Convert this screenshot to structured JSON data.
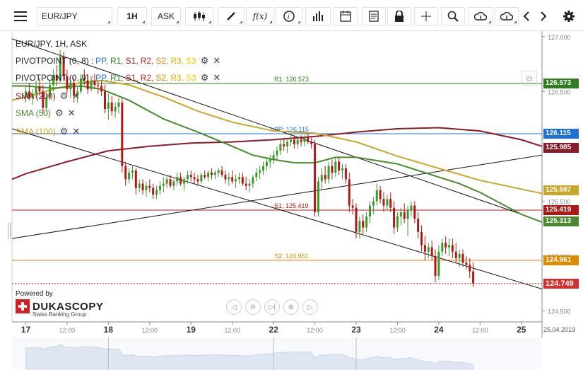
{
  "toolbar": {
    "symbol": "EUR/JPY",
    "timeframe": "1H",
    "price_side": "ASK"
  },
  "header": {
    "title": "EUR/JPY, 1H, ASK"
  },
  "legend": {
    "pivot1": {
      "name": "PIVOTPOINT (0, 8)",
      "sep": ":",
      "levels": [
        "PP",
        "R1",
        "S1",
        "R2",
        "S2",
        "R3",
        "S3"
      ]
    },
    "pivot2": {
      "name": "PIVOTPOINT (0, 9)",
      "sep": ":",
      "levels": [
        "PP",
        "R1",
        "S1",
        "R2",
        "S2",
        "R3",
        "S3"
      ]
    },
    "sma200": "SMA (200)",
    "sma50": "SMA (50)",
    "sma100": "SMA (100)"
  },
  "colors": {
    "PP": "#1e6fd9",
    "R1": "#2e7d1e",
    "S1": "#b01818",
    "R2": "#cc1f1f",
    "S2": "#e08a00",
    "R3": "#e0b000",
    "S3": "#f0d000",
    "sma200": "#8b1a2a",
    "sma50": "#4a8a2e",
    "sma100": "#c8a62a",
    "bull": "#3a9a2a",
    "bear": "#b01818"
  },
  "brand": {
    "powered": "Powered by",
    "name": "DUKASCOPY",
    "sub": "Swiss Banking Group"
  },
  "navigation": [
    "◁",
    "⊖",
    "▷|",
    "⊕",
    "▷"
  ],
  "chart_data": {
    "type": "candlestick",
    "title": "EUR/JPY, 1H, ASK",
    "ylim": [
      124.4,
      127.05
    ],
    "yticks": [
      "127.000",
      "126.500",
      "125.500",
      "125.000",
      "124.500"
    ],
    "xticks": [
      {
        "x": 0,
        "label": "17"
      },
      {
        "x": 12,
        "label": "12:00"
      },
      {
        "x": 24,
        "label": "18"
      },
      {
        "x": 36,
        "label": "12:00"
      },
      {
        "x": 48,
        "label": "19"
      },
      {
        "x": 60,
        "label": "12:00"
      },
      {
        "x": 72,
        "label": "22"
      },
      {
        "x": 84,
        "label": "12:00"
      },
      {
        "x": 96,
        "label": "23"
      },
      {
        "x": 108,
        "label": "12:00"
      },
      {
        "x": 120,
        "label": "24"
      },
      {
        "x": 132,
        "label": "12:00"
      },
      {
        "x": 144,
        "label": "25"
      }
    ],
    "date_label": "25.04.2019",
    "levels": [
      {
        "label": "R1: 126.573",
        "value": 126.573,
        "tag": "126.573",
        "key": "R1"
      },
      {
        "label": "PP: 126.115",
        "value": 126.115,
        "tag": "126.115",
        "key": "PP"
      },
      {
        "label": "S1: 125.419",
        "value": 125.419,
        "tag": "125.419",
        "key": "S1"
      },
      {
        "label": "S2: 124.961",
        "value": 124.961,
        "tag": "124.961",
        "key": "S2"
      }
    ],
    "sma_tags": [
      {
        "name": "SMA (200)",
        "tag": "125.985",
        "key": "sma200"
      },
      {
        "name": "SMA (100)",
        "tag": "125.597",
        "key": "sma100"
      },
      {
        "name": "SMA (50)",
        "tag": "125.313",
        "key": "sma50"
      }
    ],
    "last_price": "124.749",
    "last_price_value": 124.749,
    "sma200": [
      [
        -4,
        125.7
      ],
      [
        0,
        125.75
      ],
      [
        12,
        125.86
      ],
      [
        24,
        125.96
      ],
      [
        36,
        126.0
      ],
      [
        48,
        126.03
      ],
      [
        60,
        126.04
      ],
      [
        72,
        126.06
      ],
      [
        84,
        126.09
      ],
      [
        96,
        126.13
      ],
      [
        108,
        126.16
      ],
      [
        120,
        126.17
      ],
      [
        132,
        126.14
      ],
      [
        144,
        126.06
      ],
      [
        150,
        126.0
      ]
    ],
    "sma100": [
      [
        -4,
        126.42
      ],
      [
        0,
        126.45
      ],
      [
        8,
        126.52
      ],
      [
        16,
        126.58
      ],
      [
        22,
        126.6
      ],
      [
        30,
        126.56
      ],
      [
        40,
        126.45
      ],
      [
        50,
        126.32
      ],
      [
        60,
        126.22
      ],
      [
        72,
        126.14
      ],
      [
        84,
        126.12
      ],
      [
        96,
        126.04
      ],
      [
        108,
        125.91
      ],
      [
        120,
        125.8
      ],
      [
        132,
        125.69
      ],
      [
        144,
        125.61
      ],
      [
        150,
        125.57
      ]
    ],
    "sma50": [
      [
        -4,
        126.55
      ],
      [
        0,
        126.55
      ],
      [
        8,
        126.53
      ],
      [
        16,
        126.55
      ],
      [
        22,
        126.52
      ],
      [
        30,
        126.42
      ],
      [
        40,
        126.25
      ],
      [
        50,
        126.13
      ],
      [
        60,
        126.0
      ],
      [
        66,
        125.92
      ],
      [
        72,
        125.88
      ],
      [
        78,
        125.85
      ],
      [
        84,
        125.85
      ],
      [
        90,
        125.9
      ],
      [
        96,
        125.9
      ],
      [
        102,
        125.87
      ],
      [
        108,
        125.84
      ],
      [
        114,
        125.78
      ],
      [
        120,
        125.72
      ],
      [
        126,
        125.66
      ],
      [
        132,
        125.58
      ],
      [
        138,
        125.48
      ],
      [
        144,
        125.38
      ],
      [
        150,
        125.31
      ]
    ],
    "trendlines": [
      [
        [
          -4,
          126.98
        ],
        [
          146,
          125.36
        ]
      ],
      [
        [
          -4,
          126.16
        ],
        [
          150,
          124.7
        ]
      ],
      [
        [
          -4,
          125.16
        ],
        [
          150,
          125.92
        ]
      ]
    ],
    "candles": [
      [
        126.45,
        126.55,
        126.4,
        126.5
      ],
      [
        126.5,
        126.58,
        126.42,
        126.44
      ],
      [
        126.44,
        126.52,
        126.38,
        126.48
      ],
      [
        126.48,
        126.6,
        126.44,
        126.55
      ],
      [
        126.55,
        126.62,
        126.46,
        126.5
      ],
      [
        126.5,
        126.56,
        126.3,
        126.35
      ],
      [
        126.35,
        126.48,
        126.32,
        126.45
      ],
      [
        126.45,
        126.6,
        126.42,
        126.56
      ],
      [
        126.56,
        126.7,
        126.5,
        126.65
      ],
      [
        126.65,
        126.74,
        126.55,
        126.6
      ],
      [
        126.6,
        126.88,
        126.58,
        126.82
      ],
      [
        126.82,
        126.86,
        126.6,
        126.64
      ],
      [
        126.64,
        126.7,
        126.48,
        126.52
      ],
      [
        126.52,
        126.6,
        126.44,
        126.58
      ],
      [
        126.58,
        126.62,
        126.4,
        126.46
      ],
      [
        126.46,
        126.54,
        126.4,
        126.5
      ],
      [
        126.5,
        126.66,
        126.48,
        126.62
      ],
      [
        126.62,
        126.7,
        126.56,
        126.6
      ],
      [
        126.6,
        126.66,
        126.48,
        126.52
      ],
      [
        126.52,
        126.64,
        126.5,
        126.6
      ],
      [
        126.6,
        126.66,
        126.52,
        126.56
      ],
      [
        126.56,
        126.6,
        126.48,
        126.55
      ],
      [
        126.55,
        126.6,
        126.46,
        126.5
      ],
      [
        126.5,
        126.56,
        126.3,
        126.34
      ],
      [
        126.34,
        126.48,
        126.24,
        126.4
      ],
      [
        126.4,
        126.46,
        126.28,
        126.32
      ],
      [
        126.32,
        126.4,
        126.26,
        126.36
      ],
      [
        126.36,
        126.44,
        126.3,
        126.4
      ],
      [
        126.4,
        126.44,
        125.76,
        125.82
      ],
      [
        125.82,
        125.86,
        125.64,
        125.7
      ],
      [
        125.7,
        125.8,
        125.66,
        125.76
      ],
      [
        125.76,
        125.82,
        125.7,
        125.78
      ],
      [
        125.78,
        125.8,
        125.56,
        125.62
      ],
      [
        125.62,
        125.7,
        125.58,
        125.66
      ],
      [
        125.66,
        125.7,
        125.56,
        125.6
      ],
      [
        125.6,
        125.68,
        125.54,
        125.64
      ],
      [
        125.64,
        125.7,
        125.58,
        125.62
      ],
      [
        125.62,
        125.66,
        125.52,
        125.56
      ],
      [
        125.56,
        125.64,
        125.52,
        125.6
      ],
      [
        125.6,
        125.68,
        125.56,
        125.64
      ],
      [
        125.64,
        125.72,
        125.58,
        125.66
      ],
      [
        125.66,
        125.74,
        125.62,
        125.7
      ],
      [
        125.7,
        125.74,
        125.62,
        125.64
      ],
      [
        125.64,
        125.7,
        125.6,
        125.68
      ],
      [
        125.68,
        125.76,
        125.64,
        125.72
      ],
      [
        125.72,
        125.76,
        125.64,
        125.66
      ],
      [
        125.66,
        125.72,
        125.6,
        125.7
      ],
      [
        125.7,
        125.78,
        125.66,
        125.74
      ],
      [
        125.74,
        125.78,
        125.68,
        125.72
      ],
      [
        125.72,
        125.76,
        125.66,
        125.7
      ],
      [
        125.7,
        125.74,
        125.64,
        125.68
      ],
      [
        125.68,
        125.76,
        125.66,
        125.74
      ],
      [
        125.74,
        125.78,
        125.7,
        125.72
      ],
      [
        125.72,
        125.78,
        125.68,
        125.76
      ],
      [
        125.76,
        125.8,
        125.7,
        125.74
      ],
      [
        125.74,
        125.78,
        125.7,
        125.76
      ],
      [
        125.76,
        125.8,
        125.72,
        125.78
      ],
      [
        125.78,
        125.82,
        125.72,
        125.74
      ],
      [
        125.74,
        125.78,
        125.66,
        125.7
      ],
      [
        125.7,
        125.76,
        125.64,
        125.72
      ],
      [
        125.72,
        125.78,
        125.66,
        125.68
      ],
      [
        125.68,
        125.74,
        125.62,
        125.7
      ],
      [
        125.7,
        125.76,
        125.66,
        125.72
      ],
      [
        125.72,
        125.76,
        125.64,
        125.66
      ],
      [
        125.66,
        125.72,
        125.6,
        125.64
      ],
      [
        125.64,
        125.7,
        125.58,
        125.66
      ],
      [
        125.66,
        125.74,
        125.62,
        125.72
      ],
      [
        125.72,
        125.8,
        125.68,
        125.76
      ],
      [
        125.76,
        125.82,
        125.7,
        125.78
      ],
      [
        125.78,
        125.86,
        125.74,
        125.82
      ],
      [
        125.82,
        125.9,
        125.78,
        125.86
      ],
      [
        125.86,
        125.92,
        125.8,
        125.88
      ],
      [
        125.88,
        125.96,
        125.84,
        125.92
      ],
      [
        125.92,
        126.0,
        125.88,
        125.96
      ],
      [
        125.96,
        126.06,
        125.92,
        126.02
      ],
      [
        126.02,
        126.08,
        125.96,
        126.0
      ],
      [
        126.0,
        126.06,
        125.94,
        126.04
      ],
      [
        126.04,
        126.1,
        126.0,
        126.06
      ],
      [
        126.06,
        126.1,
        125.98,
        126.02
      ],
      [
        126.02,
        126.08,
        125.98,
        126.06
      ],
      [
        126.06,
        126.1,
        126.0,
        126.04
      ],
      [
        126.04,
        126.1,
        126.0,
        126.08
      ],
      [
        126.08,
        126.12,
        126.02,
        126.04
      ],
      [
        126.04,
        126.08,
        125.98,
        126.02
      ],
      [
        126.02,
        126.06,
        125.36,
        125.4
      ],
      [
        125.4,
        125.72,
        125.36,
        125.68
      ],
      [
        125.68,
        125.8,
        125.6,
        125.74
      ],
      [
        125.74,
        125.82,
        125.66,
        125.7
      ],
      [
        125.7,
        125.86,
        125.66,
        125.82
      ],
      [
        125.82,
        125.88,
        125.7,
        125.76
      ],
      [
        125.76,
        125.9,
        125.72,
        125.86
      ],
      [
        125.86,
        125.9,
        125.74,
        125.78
      ],
      [
        125.78,
        125.84,
        125.7,
        125.8
      ],
      [
        125.8,
        125.84,
        125.66,
        125.7
      ],
      [
        125.7,
        125.76,
        125.4,
        125.46
      ],
      [
        125.46,
        125.52,
        125.38,
        125.44
      ],
      [
        125.44,
        125.48,
        125.16,
        125.22
      ],
      [
        125.22,
        125.36,
        125.16,
        125.32
      ],
      [
        125.32,
        125.38,
        125.2,
        125.26
      ],
      [
        125.26,
        125.4,
        125.22,
        125.36
      ],
      [
        125.36,
        125.5,
        125.3,
        125.46
      ],
      [
        125.46,
        125.54,
        125.38,
        125.5
      ],
      [
        125.5,
        125.66,
        125.46,
        125.6
      ],
      [
        125.6,
        125.64,
        125.48,
        125.52
      ],
      [
        125.52,
        125.58,
        125.4,
        125.46
      ],
      [
        125.46,
        125.56,
        125.42,
        125.52
      ],
      [
        125.52,
        125.58,
        125.4,
        125.44
      ],
      [
        125.44,
        125.5,
        125.2,
        125.26
      ],
      [
        125.26,
        125.4,
        125.22,
        125.36
      ],
      [
        125.36,
        125.44,
        125.28,
        125.4
      ],
      [
        125.4,
        125.48,
        125.3,
        125.34
      ],
      [
        125.34,
        125.46,
        125.18,
        125.42
      ],
      [
        125.42,
        125.5,
        125.36,
        125.46
      ],
      [
        125.46,
        125.5,
        125.3,
        125.34
      ],
      [
        125.34,
        125.4,
        125.16,
        125.22
      ],
      [
        125.22,
        125.28,
        125.04,
        125.1
      ],
      [
        125.1,
        125.18,
        124.96,
        125.04
      ],
      [
        125.04,
        125.12,
        124.98,
        125.08
      ],
      [
        125.08,
        125.14,
        124.96,
        125.0
      ],
      [
        125.0,
        125.06,
        124.76,
        124.82
      ],
      [
        124.82,
        125.1,
        124.78,
        125.04
      ],
      [
        125.04,
        125.16,
        125.0,
        125.12
      ],
      [
        125.12,
        125.18,
        125.02,
        125.08
      ],
      [
        125.08,
        125.16,
        125.0,
        125.1
      ],
      [
        125.1,
        125.16,
        124.98,
        125.04
      ],
      [
        125.04,
        125.12,
        124.94,
        124.98
      ],
      [
        124.98,
        125.06,
        124.9,
        125.02
      ],
      [
        125.02,
        125.06,
        124.9,
        124.94
      ],
      [
        124.94,
        125.0,
        124.88,
        124.92
      ],
      [
        124.92,
        124.98,
        124.8,
        124.86
      ],
      [
        124.86,
        124.94,
        124.72,
        124.75
      ]
    ]
  }
}
